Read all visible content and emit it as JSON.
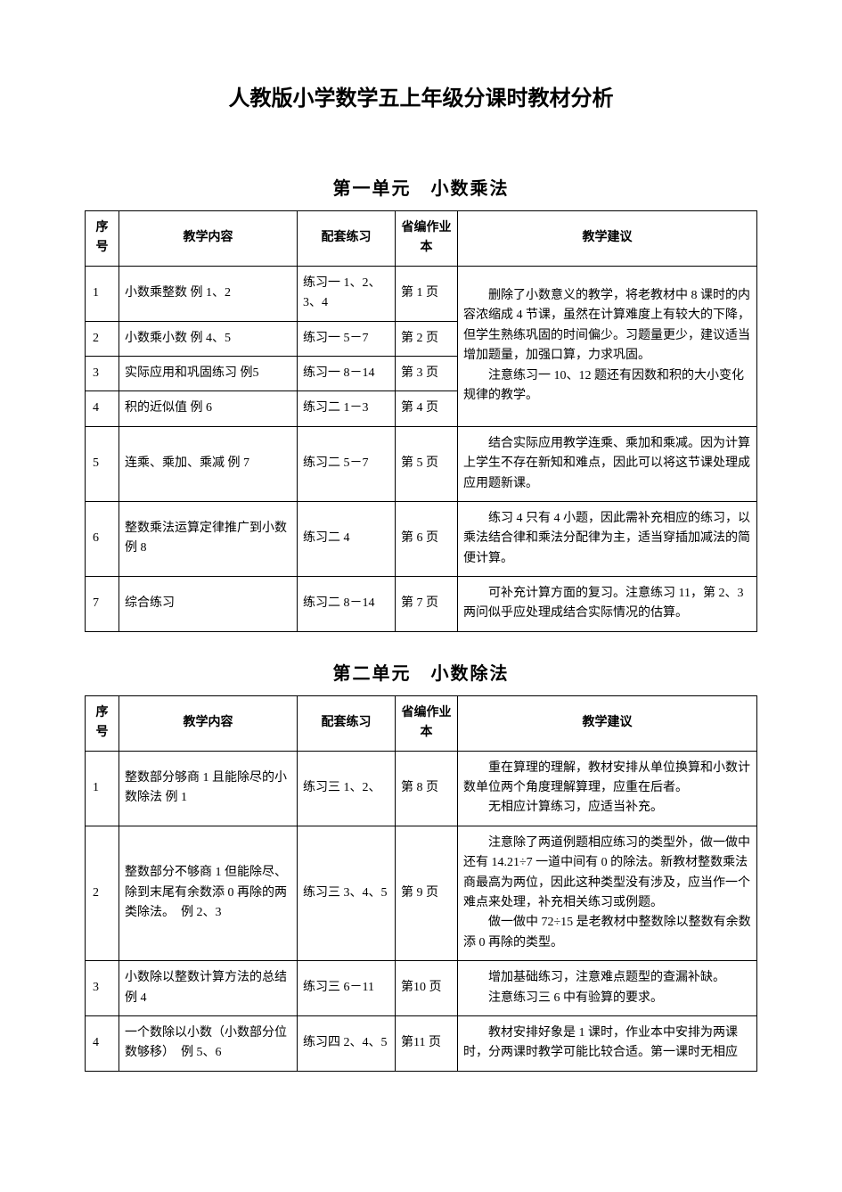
{
  "mainTitle": "人教版小学数学五上年级分课时教材分析",
  "unit1": {
    "title": "第一单元　小数乘法",
    "headers": {
      "seq": "序号",
      "content": "教学内容",
      "practice": "配套练习",
      "workbook": "省编作业本",
      "suggestion": "教学建议"
    },
    "rows": [
      {
        "seq": "1",
        "content": "小数乘整数 例 1、2",
        "practice": "练习一 1、2、3、4",
        "workbook": "第 1 页"
      },
      {
        "seq": "2",
        "content": "小数乘小数 例 4、5",
        "practice": "练习一 5－7",
        "workbook": "第 2 页"
      },
      {
        "seq": "3",
        "content": "实际应用和巩固练习 例5",
        "practice": "练习一 8－14",
        "workbook": "第 3 页"
      },
      {
        "seq": "4",
        "content": "积的近似值 例 6",
        "practice": "练习二 1－3",
        "workbook": "第 4 页"
      },
      {
        "seq": "5",
        "content": "连乘、乘加、乘减 例 7",
        "practice": "练习二 5－7",
        "workbook": "第 5 页",
        "suggestion": "结合实际应用教学连乘、乘加和乘减。因为计算上学生不存在新知和难点，因此可以将这节课处理成应用题新课。"
      },
      {
        "seq": "6",
        "content": "整数乘法运算定律推广到小数 例 8",
        "practice": "练习二 4",
        "workbook": "第 6 页",
        "suggestion": "练习 4 只有 4 小题，因此需补充相应的练习，以乘法结合律和乘法分配律为主，适当穿插加减法的简便计算。"
      },
      {
        "seq": "7",
        "content": "综合练习",
        "practice": "练习二 8－14",
        "workbook": "第 7 页",
        "suggestion": "可补充计算方面的复习。注意练习 11，第 2、3 两问似乎应处理成结合实际情况的估算。"
      }
    ],
    "mergedSuggestion": "删除了小数意义的教学，将老教材中 8 课时的内容浓缩成 4 节课，虽然在计算难度上有较大的下降，但学生熟练巩固的时间偏少。习题量更少，建议适当增加题量，加强口算，力求巩固。\n注意练习一 10、12 题还有因数和积的大小变化规律的教学。"
  },
  "unit2": {
    "title": "第二单元　小数除法",
    "headers": {
      "seq": "序号",
      "content": "教学内容",
      "practice": "配套练习",
      "workbook": "省编作业本",
      "suggestion": "教学建议"
    },
    "rows": [
      {
        "seq": "1",
        "content": "整数部分够商 1 且能除尽的小数除法 例 1",
        "practice": "练习三 1、2、",
        "workbook": "第 8 页",
        "suggestion": "重在算理的理解，教材安排从单位换算和小数计数单位两个角度理解算理，应重在后者。\n无相应计算练习，应适当补充。"
      },
      {
        "seq": "2",
        "content": "整数部分不够商 1 但能除尽、除到末尾有余数添 0 再除的两类除法。　例 2、3",
        "practice": "练习三 3、4、5",
        "workbook": "第 9 页",
        "suggestion": "注意除了两道例题相应练习的类型外，做一做中还有 14.21÷7 一道中间有 0 的除法。新教材整数乘法商最高为两位，因此这种类型没有涉及，应当作一个难点来处理，补充相关练习或例题。\n做一做中 72÷15 是老教材中整数除以整数有余数添 0 再除的类型。"
      },
      {
        "seq": "3",
        "content": "小数除以整数计算方法的总结　例 4",
        "practice": "练习三 6－11",
        "workbook": "第10 页",
        "suggestion": "增加基础练习，注意难点题型的查漏补缺。\n注意练习三 6 中有验算的要求。"
      },
      {
        "seq": "4",
        "content": "一个数除以小数（小数部分位数够移）　例 5、6",
        "practice": "练习四 2、4、5",
        "workbook": "第11 页",
        "suggestion": "教材安排好象是 1 课时，作业本中安排为两课时，分两课时教学可能比较合适。第一课时无相应"
      }
    ]
  },
  "styles": {
    "backgroundColor": "#ffffff",
    "textColor": "#000000",
    "borderColor": "#000000",
    "mainTitleFontSize": 24,
    "unitTitleFontSize": 20,
    "bodyFontSize": 14,
    "fontFamily": "SimSun",
    "titleFontFamily": "SimHei"
  }
}
